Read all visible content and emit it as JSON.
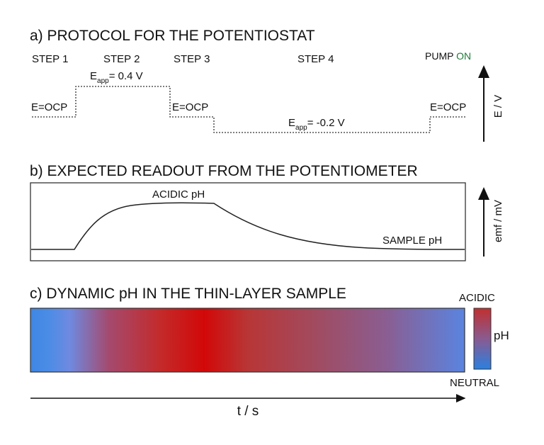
{
  "panel_a": {
    "title": "a) PROTOCOL FOR THE  POTENTIOSTAT",
    "steps": [
      "STEP 1",
      "STEP 2",
      "STEP 3",
      "STEP 4"
    ],
    "pump": {
      "word": "PUMP",
      "state": "ON"
    },
    "ocp_labels": [
      "E=OCP",
      "E=OCP",
      "E=OCP"
    ],
    "step2_potential": {
      "symbol": "E",
      "subscript": "app",
      "value": "= 0.4 V"
    },
    "step4_potential": {
      "symbol": "E",
      "subscript": "app",
      "value": "= -0.2 V"
    },
    "axis_label": "E / V"
  },
  "panel_b": {
    "title": "b) EXPECTED READOUT FROM THE POTENTIOMETER",
    "peak_label": "ACIDIC pH",
    "baseline_label": "SAMPLE pH",
    "axis_label": "emf / mV"
  },
  "panel_c": {
    "title": "c) DYNAMIC pH IN THE THIN-LAYER SAMPLE",
    "scale_top": "ACIDIC",
    "scale_label": "pH",
    "scale_bottom": "NEUTRAL"
  },
  "time_axis": {
    "label": "t / s"
  }
}
